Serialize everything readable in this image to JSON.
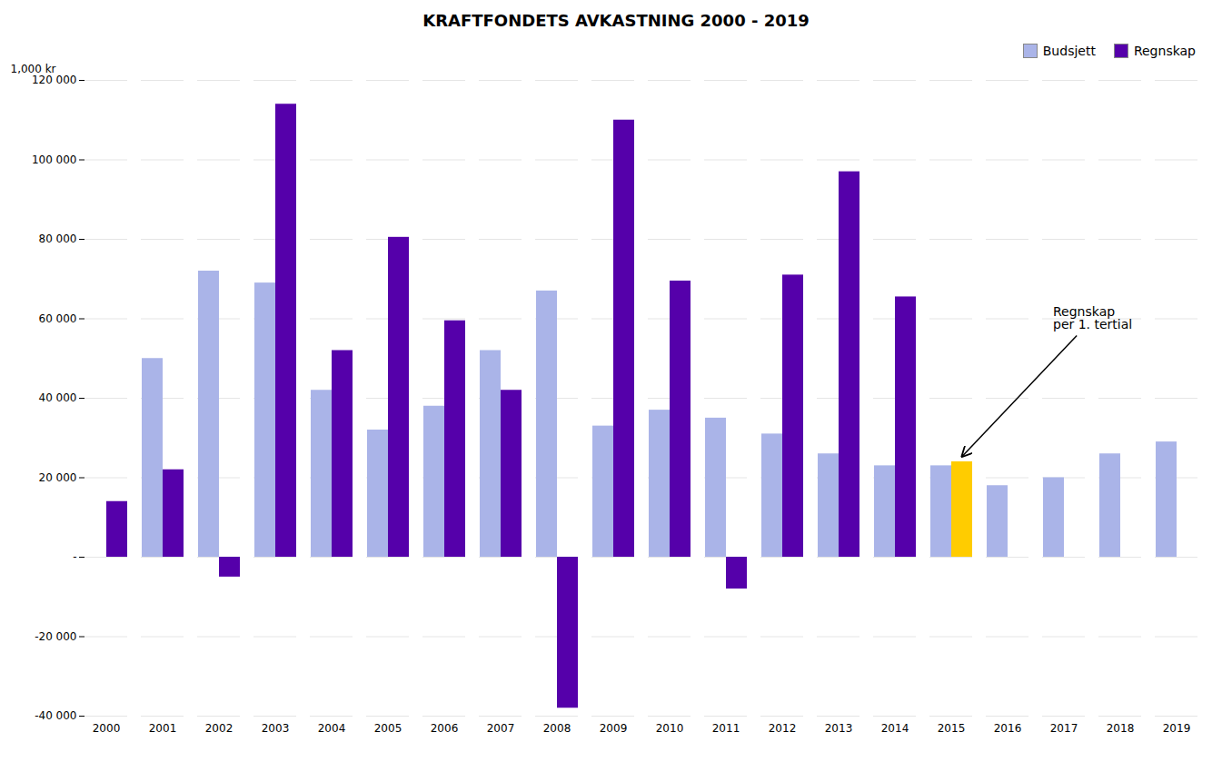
{
  "chart_data": {
    "type": "bar",
    "title": "KRAFTFONDETS AVKASTNING 2000 - 2019",
    "ylabel": "1,000 kr",
    "categories": [
      "2000",
      "2001",
      "2002",
      "2003",
      "2004",
      "2005",
      "2006",
      "2007",
      "2008",
      "2009",
      "2010",
      "2011",
      "2012",
      "2013",
      "2014",
      "2015",
      "2016",
      "2017",
      "2018",
      "2019"
    ],
    "series": [
      {
        "name": "Budsjett",
        "color": "#aab4e8",
        "values": [
          null,
          50000,
          72000,
          69000,
          42000,
          32000,
          38000,
          52000,
          67000,
          33000,
          37000,
          35000,
          31000,
          26000,
          23000,
          23000,
          18000,
          20000,
          26000,
          29000
        ]
      },
      {
        "name": "Regnskap",
        "color": "#5500aa",
        "colors": [
          "#5500aa",
          "#5500aa",
          "#5500aa",
          "#5500aa",
          "#5500aa",
          "#5500aa",
          "#5500aa",
          "#5500aa",
          "#5500aa",
          "#5500aa",
          "#5500aa",
          "#5500aa",
          "#5500aa",
          "#5500aa",
          "#5500aa",
          "#ffcc00",
          "#5500aa",
          "#5500aa",
          "#5500aa",
          "#5500aa"
        ],
        "values": [
          14000,
          22000,
          -5000,
          114000,
          52000,
          80500,
          59500,
          42000,
          -38000,
          110000,
          69500,
          -8000,
          71000,
          97000,
          65500,
          24000,
          null,
          null,
          null,
          null
        ]
      }
    ],
    "ylim": [
      -40000,
      120000
    ],
    "yticks": [
      {
        "value": -40000,
        "label": "-40 000"
      },
      {
        "value": -20000,
        "label": "-20 000"
      },
      {
        "value": 0,
        "label": "-"
      },
      {
        "value": 20000,
        "label": "20 000"
      },
      {
        "value": 40000,
        "label": "40 000"
      },
      {
        "value": 60000,
        "label": "60 000"
      },
      {
        "value": 80000,
        "label": "80 000"
      },
      {
        "value": 100000,
        "label": "100 000"
      },
      {
        "value": 120000,
        "label": "120 000"
      }
    ],
    "grid": true,
    "legend": "upper right",
    "annotations": [
      {
        "text": "Regnskap\nper 1. tertial",
        "x": "2015",
        "series": "Regnskap",
        "y": 24000
      }
    ]
  }
}
